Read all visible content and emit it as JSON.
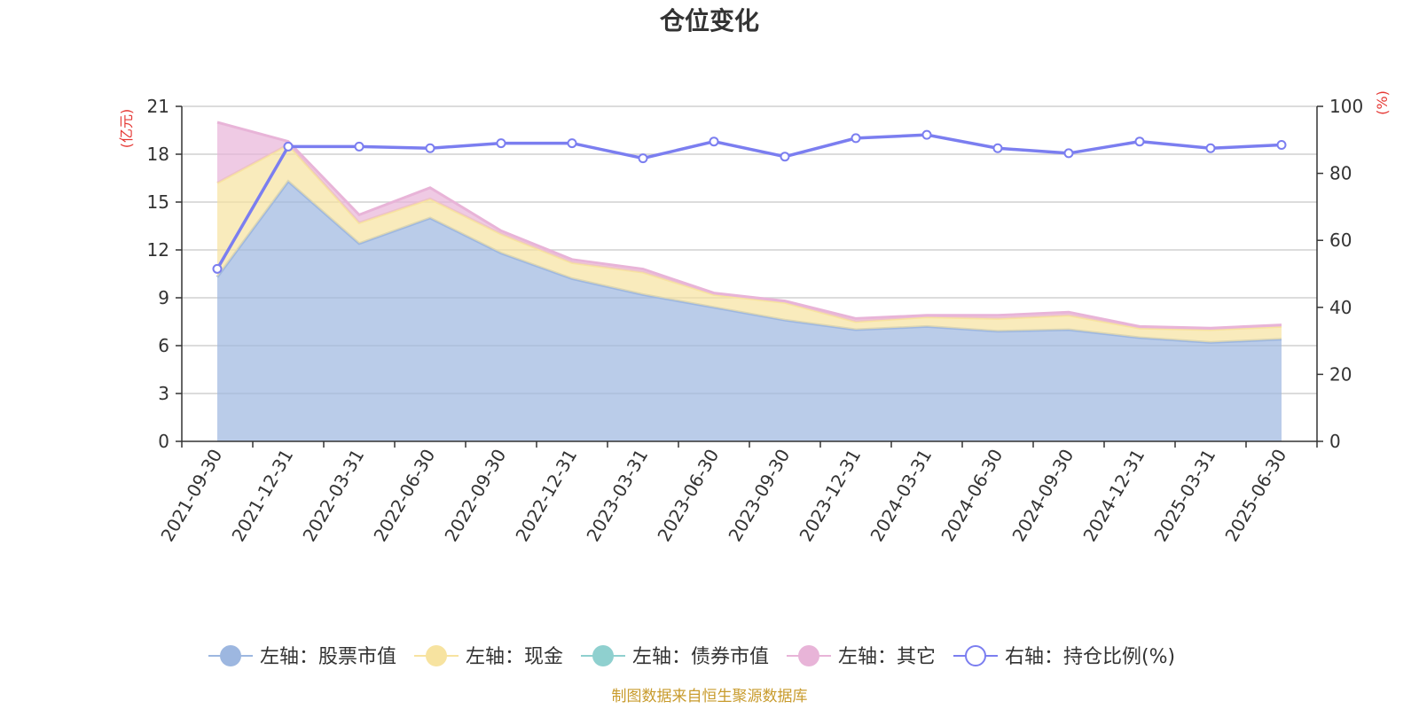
{
  "chart_data": {
    "type": "area",
    "title": "仓位变化",
    "left_axis_unit": "(亿元)",
    "right_axis_unit": "(%)",
    "x": [
      "2021-09-30",
      "2021-12-31",
      "2022-03-31",
      "2022-06-30",
      "2022-09-30",
      "2022-12-31",
      "2023-03-31",
      "2023-06-30",
      "2023-09-30",
      "2023-12-31",
      "2024-03-31",
      "2024-06-30",
      "2024-09-30",
      "2024-12-31",
      "2025-03-31",
      "2025-06-30"
    ],
    "ylim_left": [
      0,
      21
    ],
    "yticks_left": [
      0,
      3,
      6,
      9,
      12,
      15,
      18,
      21
    ],
    "ylim_right": [
      0,
      100
    ],
    "yticks_right": [
      0,
      20,
      40,
      60,
      80,
      100
    ],
    "grid": true,
    "legend_position": "bottom",
    "series": [
      {
        "name": "左轴：股票市值",
        "axis": "left",
        "type": "stacked-area",
        "color": "#9db7e0",
        "values": [
          10.3,
          16.3,
          12.4,
          14.0,
          11.8,
          10.2,
          9.2,
          8.4,
          7.6,
          7.0,
          7.2,
          6.9,
          7.0,
          6.5,
          6.2,
          6.4
        ]
      },
      {
        "name": "左轴：现金",
        "axis": "left",
        "type": "stacked-area",
        "color": "#f7e3a0",
        "values": [
          5.9,
          2.3,
          1.3,
          1.2,
          1.2,
          1.0,
          1.4,
          0.8,
          1.1,
          0.5,
          0.6,
          0.8,
          0.9,
          0.6,
          0.8,
          0.8
        ]
      },
      {
        "name": "左轴：债券市值",
        "axis": "left",
        "type": "stacked-area",
        "color": "#8fd0cf",
        "values": [
          0,
          0,
          0,
          0,
          0,
          0,
          0,
          0,
          0,
          0,
          0,
          0,
          0,
          0,
          0,
          0
        ]
      },
      {
        "name": "左轴：其它",
        "axis": "left",
        "type": "stacked-area",
        "color": "#e8b4d8",
        "values": [
          3.8,
          0.2,
          0.5,
          0.7,
          0.2,
          0.2,
          0.2,
          0.1,
          0.1,
          0.2,
          0.1,
          0.2,
          0.2,
          0.1,
          0.1,
          0.1
        ]
      },
      {
        "name": "右轴：持仓比例(%)",
        "axis": "right",
        "type": "line",
        "color": "#7b7ef0",
        "values": [
          51.5,
          88,
          88,
          87.5,
          89,
          89,
          84.5,
          89.5,
          85,
          90.5,
          91.5,
          87.5,
          86,
          89.5,
          87.5,
          88.5
        ]
      }
    ]
  },
  "source_text": "制图数据来自恒生聚源数据库"
}
